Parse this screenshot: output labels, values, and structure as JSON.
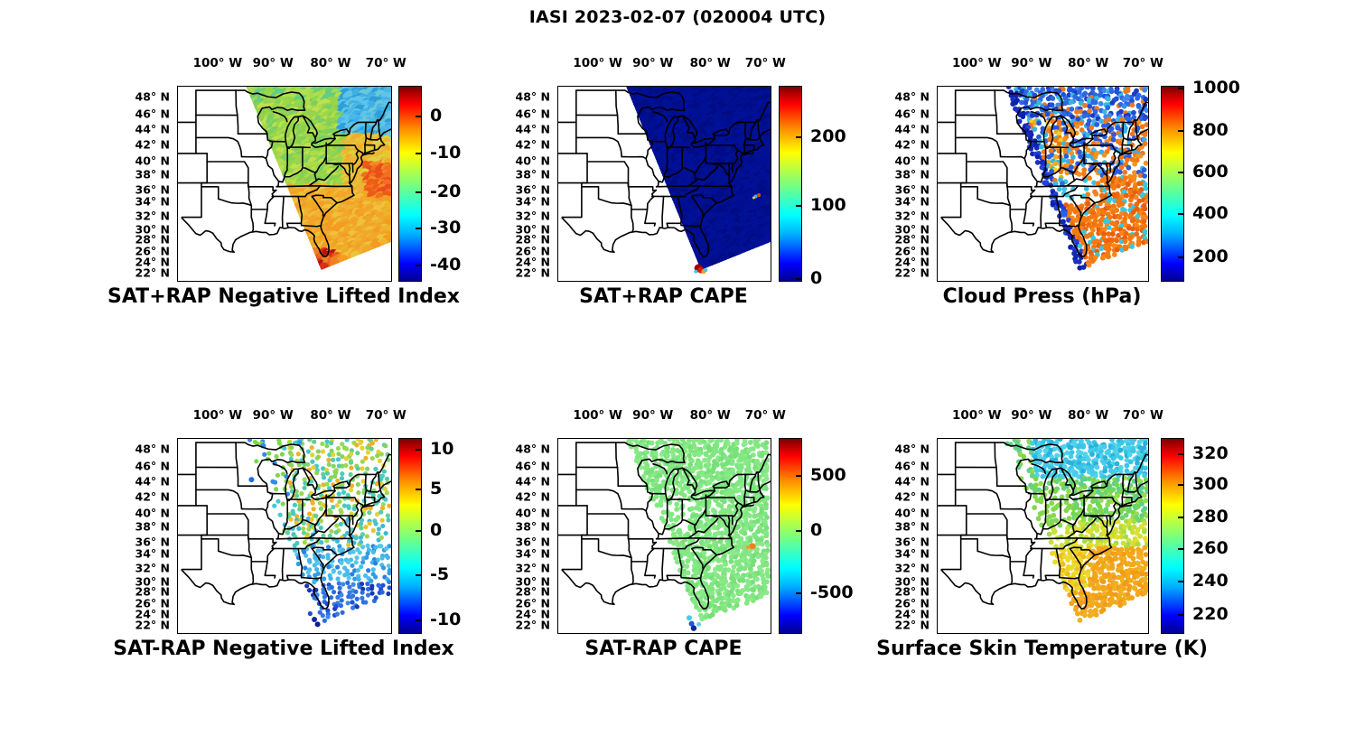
{
  "title": "IASI 2023-02-07 (020004 UTC)",
  "chart_data": {
    "type": "scatter",
    "subtype": "geographic-map-grid",
    "suptitle": "IASI 2023-02-07 (020004 UTC)",
    "grid": {
      "rows": 2,
      "cols": 3
    },
    "colormap": "jet",
    "map_extent": {
      "lon_min": -107.3,
      "lon_max": -68.8,
      "lat_min": 20.5,
      "lat_max": 49.5
    },
    "lon_ticks": {
      "labels": [
        "100° W",
        "90° W",
        "80° W",
        "70° W"
      ],
      "fractions": [
        0.19,
        0.45,
        0.72,
        0.98
      ]
    },
    "lat_ticks": {
      "labels": [
        "48° N",
        "46° N",
        "44° N",
        "42° N",
        "40° N",
        "38° N",
        "36° N",
        "34° N",
        "32° N",
        "30° N",
        "28° N",
        "26° N",
        "24° N",
        "22° N"
      ],
      "values": [
        48,
        46,
        44,
        42,
        40,
        38,
        36,
        34,
        32,
        30,
        28,
        26,
        24,
        22
      ],
      "fractions": [
        0.056,
        0.144,
        0.223,
        0.302,
        0.386,
        0.456,
        0.535,
        0.595,
        0.669,
        0.739,
        0.791,
        0.851,
        0.907,
        0.963
      ]
    },
    "swath_polygon_fractions": [
      [
        0.32,
        0
      ],
      [
        1,
        0
      ],
      [
        1,
        0.8
      ],
      [
        0.672,
        0.944
      ]
    ],
    "panels": [
      {
        "title": "SAT+RAP Negative Lifted Index",
        "row": 0,
        "col": 0,
        "render": "smooth",
        "colorbar": {
          "ticks": [
            "0",
            "-10",
            "-20",
            "-30",
            "-40"
          ],
          "fractions": [
            0.155,
            0.343,
            0.545,
            0.728,
            0.92
          ],
          "range_approx": [
            -44,
            7
          ]
        },
        "summary": "Smooth swath: -15 to -20 (green) Midwest/Great Lakes, -25 to -35 (cyan-blue) far Northeast, -5 to -10 (orange) SE Atlantic, ~0 (red) spot south of Florida",
        "dot": {
          "spacing": 4,
          "r": 5.5
        },
        "regions": [
          {
            "x0": 0.62,
            "x1": 0.75,
            "y0": 0.85,
            "y1": 1,
            "colors": [
              "#d83018",
              "#b41410",
              "#e85c1c",
              "#f08020"
            ]
          },
          {
            "x0": 0.88,
            "y0": 0.4,
            "y1": 0.58,
            "colors": [
              "#e94e1c",
              "#f0701e",
              "#ee5a18",
              "#f28c22"
            ]
          },
          {
            "x0": 0.76,
            "y1": 0.26,
            "colors": [
              "#3fb0e6",
              "#2d9fd8",
              "#5ec4ec",
              "#49b8e8",
              "#6cc8d8"
            ]
          },
          {
            "y1": 0.09,
            "colors": [
              "#93d747",
              "#b2df4e",
              "#62cd84",
              "#a8da4a"
            ]
          },
          {
            "y0": 0.52,
            "colors": [
              "#f2a42a",
              "#efb232",
              "#f49c22",
              "#eec23a",
              "#f0a826"
            ]
          },
          {
            "x0": 0.78,
            "y0": 0.26,
            "y1": 0.52,
            "colors": [
              "#ecc238",
              "#f0ac2c",
              "#e0d040",
              "#e8b834"
            ]
          },
          {
            "colors": [
              "#9bd746",
              "#8ad04f",
              "#aedb4b",
              "#79ce66",
              "#c0e050",
              "#95d44e"
            ]
          }
        ],
        "features": []
      },
      {
        "title": "SAT+RAP CAPE",
        "row": 0,
        "col": 1,
        "render": "smooth",
        "colorbar": {
          "ticks": [
            "200",
            "100",
            "0"
          ],
          "fractions": [
            0.26,
            0.616,
            0.99
          ],
          "range_approx": [
            0,
            272
          ]
        },
        "summary": "Nearly uniform 0 J/kg (dark blue) over whole swath; >250 (dark red) hotspot at the Florida Keys; tiny anomaly near 34N 70W",
        "dot": {
          "spacing": 4,
          "r": 5.5
        },
        "regions": [
          {
            "colors": [
              "#000f90",
              "#001098",
              "#000c84",
              "#001194"
            ]
          }
        ],
        "features": [
          {
            "x": 0.66,
            "y": 0.935,
            "r": 4.5,
            "c": "#a00000"
          },
          {
            "x": 0.672,
            "y": 0.945,
            "r": 3.5,
            "c": "#d42010"
          },
          {
            "x": 0.685,
            "y": 0.952,
            "r": 2.5,
            "c": "#f0a020"
          },
          {
            "x": 0.695,
            "y": 0.945,
            "r": 2,
            "c": "#40c8e8"
          },
          {
            "x": 0.648,
            "y": 0.952,
            "r": 2,
            "c": "#40c8e8"
          },
          {
            "x": 0.93,
            "y": 0.565,
            "r": 2,
            "c": "#38b4e4"
          },
          {
            "x": 0.945,
            "y": 0.558,
            "r": 2,
            "c": "#e04818"
          },
          {
            "x": 0.921,
            "y": 0.572,
            "r": 1.5,
            "c": "#e8d028"
          }
        ]
      },
      {
        "title": "Cloud Press (hPa)",
        "row": 0,
        "col": 2,
        "render": "dots",
        "colorbar": {
          "ticks": [
            "1000",
            "800",
            "600",
            "400",
            "200"
          ],
          "fractions": [
            0.01,
            0.228,
            0.443,
            0.658,
            0.877
          ],
          "range_approx": [
            90,
            1010
          ]
        },
        "summary": "Scattered retrievals: 150-300 hPa (blue) high cloud north, mixed 400-800 hPa around Great Lakes, ~800 hPa (orange) low cloud over SE ocean; white = clear sky",
        "dot": {
          "spacing": 4.5,
          "r": 2.9
        },
        "regions": [
          {
            "band": 0.045,
            "colors": [
              "#0f20a8",
              "#1830c4",
              "#2242d6",
              "#1228b0"
            ],
            "skip": 0.08
          },
          {
            "y1": 0.17,
            "colors": [
              "#2050d8",
              "#2d68e2",
              "#1c3cc0",
              "#3f88ec",
              "#2050d8",
              "#35b8e0",
              "#f07818",
              "#2d68e2"
            ],
            "skip": 0.15
          },
          {
            "x1": 0.6,
            "y0": 0.17,
            "y1": 0.5,
            "colors": [
              "#f07818",
              "#e8ac24",
              "#34b8e0",
              "#2458d8",
              "#e8d428",
              "#f07818",
              "#2d68e2"
            ],
            "skip": 0.25
          },
          {
            "x0": 0.6,
            "y0": 0.17,
            "y1": 0.46,
            "colors": [
              "#f07818",
              "#2a5ce0",
              "#3ab0e8",
              "#ef9420",
              "#2a5ce0",
              "#f07818"
            ],
            "skip": 0.28
          },
          {
            "x0": 0.44,
            "x1": 0.78,
            "y0": 0.46,
            "y1": 0.6,
            "colors": [
              "#f08020",
              "#3cc0e0"
            ],
            "skip": 0.6
          },
          {
            "x0": 0.58,
            "y0": 0.46,
            "colors": [
              "#f4790f",
              "#ee6a10",
              "#f8881a",
              "#e95e0e",
              "#f4790f",
              "#f4790f",
              "#38c8e0"
            ],
            "skip": 0.05
          },
          {
            "y0": 0.6,
            "colors": [
              "#f4790f",
              "#f8881a",
              "#ee6a10"
            ],
            "skip": 0.12
          }
        ],
        "features": [
          {
            "x": 0.6,
            "y": 0.655,
            "r": 4,
            "c": "#2563e8"
          }
        ]
      },
      {
        "title": "SAT-RAP Negative Lifted Index",
        "row": 1,
        "col": 0,
        "render": "dots",
        "colorbar": {
          "ticks": [
            "10",
            "5",
            "0",
            "-5",
            "-10"
          ],
          "fractions": [
            0.055,
            0.26,
            0.475,
            0.703,
            0.936
          ],
          "range_approx": [
            -11.5,
            11
          ]
        },
        "summary": "Differences near 0 to +2 (green/yellow) north of ~38N, -3 to -8 (cyan/blue) over SE Atlantic, darkest blue (~-10) near the Florida Straits",
        "dot": {
          "spacing": 5.5,
          "r": 2.6
        },
        "regions": [
          {
            "x1": 0.52,
            "y1": 0.42,
            "colors": [
              "#2f8ce8",
              "#7cd84a",
              "#42c8d8",
              "#7cd84a"
            ],
            "skip": 0.62
          },
          {
            "y1": 0.4,
            "colors": [
              "#84d463",
              "#9cd94e",
              "#5fcf92",
              "#e4d233",
              "#46c8c8",
              "#eeb028",
              "#8ed45a",
              "#52ccb0"
            ],
            "skip": 0.22
          },
          {
            "y0": 0.4,
            "y1": 0.55,
            "colors": [
              "#4cc8bc",
              "#63cf9a",
              "#3cb8dc",
              "#a0d84a",
              "#e8c42c",
              "#44c0d0"
            ],
            "skip": 0.28
          },
          {
            "y0": 0.55,
            "y1": 0.74,
            "colors": [
              "#41b4e8",
              "#2f9ce4",
              "#55c6ea",
              "#2a80e0",
              "#48bce8"
            ],
            "skip": 0.12
          },
          {
            "y0": 0.74,
            "colors": [
              "#2a6ce0",
              "#1e50d0",
              "#3c8ae6",
              "#1838b0",
              "#2a6ce0",
              "#3578e2"
            ],
            "skip": 0.1
          }
        ],
        "features": [
          {
            "x": 0.64,
            "y": 0.93,
            "r": 3,
            "c": "#1028a0"
          },
          {
            "x": 0.655,
            "y": 0.955,
            "r": 3,
            "c": "#0c1c90"
          },
          {
            "x": 0.62,
            "y": 0.9,
            "r": 2.6,
            "c": "#2050c8"
          },
          {
            "x": 0.4,
            "y": 0.035,
            "r": 3,
            "c": "#2f8ce8"
          },
          {
            "x": 0.57,
            "y": 0.02,
            "r": 3,
            "c": "#35a0e8"
          },
          {
            "x": 0.345,
            "y": 0.21,
            "r": 3,
            "c": "#1f6ce4"
          }
        ]
      },
      {
        "title": "SAT-RAP CAPE",
        "row": 1,
        "col": 1,
        "render": "dots",
        "colorbar": {
          "ticks": [
            "500",
            "0",
            "-500"
          ],
          "fractions": [
            0.192,
            0.475,
            0.795
          ],
          "range_approx": [
            -840,
            815
          ]
        },
        "summary": "Differences ~0 (light green) nearly everywhere; isolated +200 (orange) spot near 35N 70W and -300 to -700 (blue) dots near the Florida Keys",
        "dot": {
          "spacing": 4.5,
          "r": 2.9
        },
        "regions": [
          {
            "x0": 0.34,
            "x1": 0.62,
            "y0": 0.28,
            "y1": 0.5,
            "colors": [
              "#82e882"
            ],
            "skip": 0.5
          },
          {
            "colors": [
              "#80e680",
              "#8aea8a",
              "#78e078",
              "#84e884"
            ],
            "skip": 0.1
          }
        ],
        "features": [
          {
            "x": 0.915,
            "y": 0.553,
            "r": 3.5,
            "c": "#f08020"
          },
          {
            "x": 0.893,
            "y": 0.558,
            "r": 2,
            "c": "#f0a020"
          },
          {
            "x": 0.617,
            "y": 0.922,
            "r": 3,
            "c": "#44cce8"
          },
          {
            "x": 0.628,
            "y": 0.952,
            "r": 3,
            "c": "#2054d0"
          },
          {
            "x": 0.638,
            "y": 0.975,
            "r": 3.2,
            "c": "#0f28a4"
          },
          {
            "x": 0.662,
            "y": 0.955,
            "r": 2.5,
            "c": "#64d4ea"
          }
        ]
      },
      {
        "title": "Surface Skin Temperature (K)",
        "row": 1,
        "col": 2,
        "render": "dots",
        "colorbar": {
          "ticks": [
            "320",
            "300",
            "280",
            "260",
            "240",
            "220"
          ],
          "fractions": [
            0.077,
            0.236,
            0.405,
            0.568,
            0.736,
            0.909
          ],
          "range_approx": [
            212,
            329
          ]
        },
        "summary": "~255-265 K (cyan) New England/Great Lakes, ~270-280 K (green) mid-Atlantic, ~285 K (yellow) Southeast coast, ~295-300 K (orange) Gulf Stream / SE Atlantic",
        "dot": {
          "spacing": 4.5,
          "r": 2.9
        },
        "regions": [
          {
            "x1": 0.45,
            "y1": 0.22,
            "colors": [
              "#7cd84a",
              "#62d088",
              "#8cdc50"
            ],
            "skip": 0.55
          },
          {
            "y1": 0.2,
            "colors": [
              "#38c6e6",
              "#52d2ea",
              "#2ab2dc",
              "#44cce8"
            ],
            "skip": 0.15
          },
          {
            "x0": 0.42,
            "x1": 0.64,
            "y0": 0.27,
            "y1": 0.46,
            "colors": [
              "#84d84c"
            ],
            "skip": 0.62
          },
          {
            "y0": 0.2,
            "y1": 0.42,
            "colors": [
              "#7ad648",
              "#92dc50",
              "#5ad08c",
              "#6ad470"
            ],
            "skip": 0.2
          },
          {
            "y0": 0.42,
            "y1": 0.56,
            "colors": [
              "#c6e43a",
              "#e4de2e",
              "#a6dc42",
              "#cede34"
            ],
            "skip": 0.22
          },
          {
            "x1": 0.72,
            "y0": 0.56,
            "y1": 0.78,
            "colors": [
              "#eed226",
              "#f0bc20",
              "#e8dc2c"
            ],
            "skip": 0.12
          },
          {
            "y0": 0.56,
            "colors": [
              "#f5a81c",
              "#f09c18",
              "#eeb224",
              "#f4a81c",
              "#f2a41a"
            ],
            "skip": 0.04
          }
        ],
        "features": []
      }
    ]
  }
}
